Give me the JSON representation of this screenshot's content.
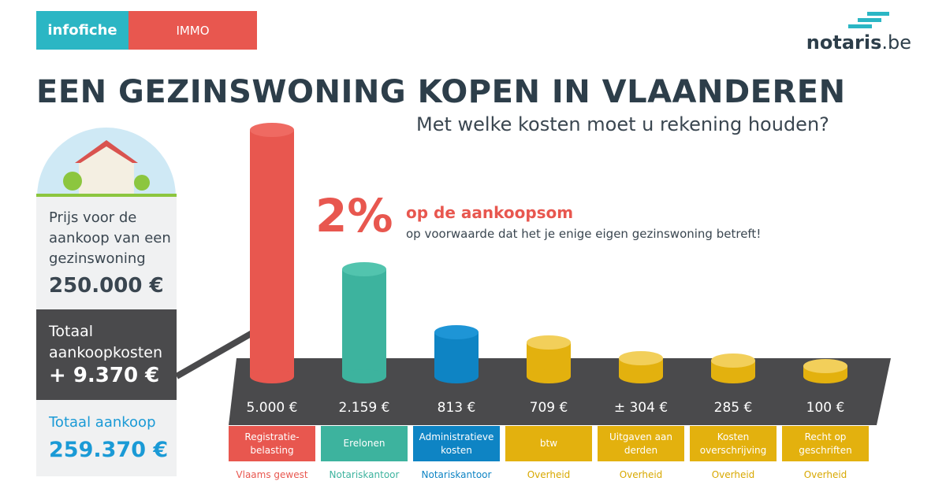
{
  "header": {
    "tag": "infofiche",
    "category": "IMMO",
    "logo": "notaris",
    "logo_suffix": ".be"
  },
  "title": "EEN GEZINSWONING KOPEN IN VLAANDEREN",
  "subtitle": "Met welke kosten moet u rekening houden?",
  "sidebar": {
    "price_label": "Prijs voor de aankoop van een gezinswoning",
    "price": "250.000 €",
    "costs_label": "Totaal aankoopkosten",
    "costs": "+ 9.370 €",
    "total_label": "Totaal aankoop",
    "total": "259.370 €"
  },
  "callout": {
    "big": "2%",
    "line1": "op de aankoopsom",
    "line2": "op voorwaarde dat het je enige eigen gezinswoning betreft!"
  },
  "items": [
    {
      "amount": "5.000 €",
      "label": "Registratie-belasting",
      "source": "Vlaams gewest"
    },
    {
      "amount": "2.159 €",
      "label": "Erelonen",
      "source": "Notariskantoor"
    },
    {
      "amount": "813 €",
      "label": "Administratieve kosten",
      "source": "Notariskantoor"
    },
    {
      "amount": "709 €",
      "label": "btw",
      "source": "Overheid"
    },
    {
      "amount": "± 304 €",
      "label": "Uitgaven aan derden",
      "source": "Overheid"
    },
    {
      "amount": "285 €",
      "label": "Kosten overschrijving",
      "source": "Overheid"
    },
    {
      "amount": "100 €",
      "label": "Recht op geschriften",
      "source": "Overheid"
    }
  ]
}
